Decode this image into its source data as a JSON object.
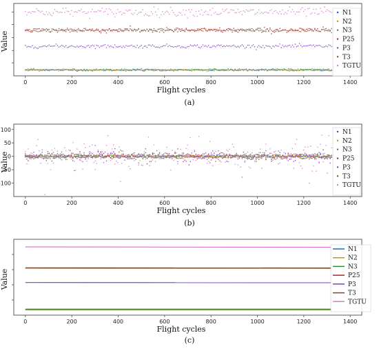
{
  "chart_data": [
    {
      "type": "scatter",
      "panel_label": "(a)",
      "xlabel": "Flight cycles",
      "ylabel": "Value",
      "xlim": [
        -50,
        1450
      ],
      "ylim": [
        0,
        1
      ],
      "x_ticks": [
        0,
        200,
        400,
        600,
        800,
        1000,
        1200,
        1400
      ],
      "y_ticks": [
        0.18,
        0.35,
        0.53,
        0.71,
        0.88
      ],
      "y_tick_labels": [],
      "grid": false,
      "legend": "right",
      "x_range": [
        0,
        1320
      ],
      "series": [
        {
          "name": "N1",
          "color": "#1f4fb4",
          "level": 0.08,
          "noise": 0.006
        },
        {
          "name": "N2",
          "color": "#d98a1a",
          "level": 0.08,
          "noise": 0.006
        },
        {
          "name": "N3",
          "color": "#2f8f2f",
          "level": 0.085,
          "noise": 0.006
        },
        {
          "name": "P25",
          "color": "#b22222",
          "level": 0.63,
          "noise": 0.018
        },
        {
          "name": "P3",
          "color": "#7b3fc4",
          "level": 0.41,
          "noise": 0.012
        },
        {
          "name": "T3",
          "color": "#7a4a2a",
          "level": 0.63,
          "noise": 0.012
        },
        {
          "name": "TGTU",
          "color": "#d87ad0",
          "level": 0.88,
          "noise": 0.03
        }
      ]
    },
    {
      "type": "scatter",
      "panel_label": "(b)",
      "xlabel": "Flight cycles",
      "ylabel": "Value",
      "xlim": [
        -50,
        1450
      ],
      "ylim": [
        -150,
        120
      ],
      "x_ticks": [
        0,
        200,
        400,
        600,
        800,
        1000,
        1200,
        1400
      ],
      "y_ticks": [
        -100,
        -50,
        0,
        50,
        100
      ],
      "y_tick_labels": [
        "-100",
        "-50",
        "0",
        "50",
        "100"
      ],
      "grid": false,
      "legend": "right",
      "x_range": [
        0,
        1320
      ],
      "series": [
        {
          "name": "N1",
          "color": "#1f4fb4",
          "level": 0,
          "noise": 3
        },
        {
          "name": "N2",
          "color": "#d98a1a",
          "level": 0,
          "noise": 3
        },
        {
          "name": "N3",
          "color": "#2f8f2f",
          "level": 0,
          "noise": 3
        },
        {
          "name": "P25",
          "color": "#b22222",
          "level": 0,
          "noise": 6
        },
        {
          "name": "P3",
          "color": "#7b3fc4",
          "level": 0,
          "noise": 10
        },
        {
          "name": "T3",
          "color": "#7a4a2a",
          "level": 0,
          "noise": 5
        },
        {
          "name": "TGTU",
          "color": "#d87ad0",
          "level": 0,
          "noise": 30
        }
      ]
    },
    {
      "type": "line",
      "panel_label": "(c)",
      "xlabel": "Flight cycles",
      "ylabel": "Value",
      "xlim": [
        -50,
        1450
      ],
      "ylim": [
        0,
        1
      ],
      "x_ticks": [
        0,
        200,
        400,
        600,
        800,
        1000,
        1200,
        1400
      ],
      "y_ticks": [
        0.2,
        0.4,
        0.6,
        0.8
      ],
      "y_tick_labels": [],
      "grid": false,
      "legend": "right",
      "x_range": [
        0,
        1320
      ],
      "series": [
        {
          "name": "N1",
          "color": "#1f6fb4",
          "values": [
            0.07,
            0.07
          ]
        },
        {
          "name": "N2",
          "color": "#d98a1a",
          "values": [
            0.075,
            0.075
          ]
        },
        {
          "name": "N3",
          "color": "#2f8f2f",
          "values": [
            0.08,
            0.08
          ]
        },
        {
          "name": "P25",
          "color": "#b22222",
          "values": [
            0.62,
            0.618
          ]
        },
        {
          "name": "P3",
          "color": "#7b3fc4",
          "values": [
            0.43,
            0.428
          ]
        },
        {
          "name": "T3",
          "color": "#7a4a2a",
          "values": [
            0.625,
            0.622
          ]
        },
        {
          "name": "TGTU",
          "color": "#d87ad0",
          "values": [
            0.9,
            0.895
          ]
        }
      ]
    }
  ]
}
